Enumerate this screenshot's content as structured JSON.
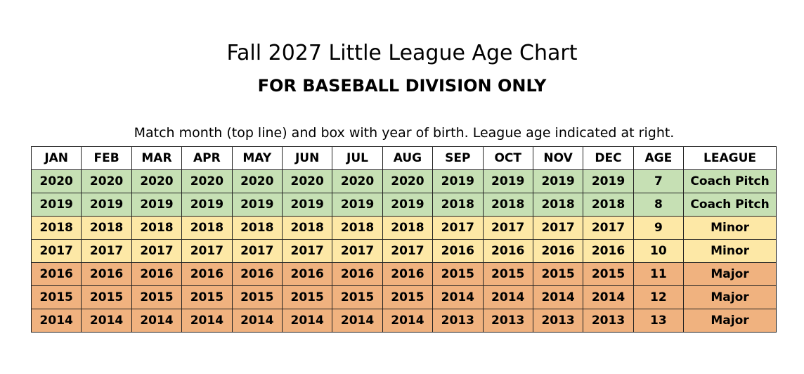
{
  "title": "Fall 2027 Little League Age Chart",
  "subtitle": "FOR BASEBALL DIVISION ONLY",
  "instruction": "Match month (top line) and box with year of birth.  League age indicated at right.",
  "table": {
    "header": [
      "JAN",
      "FEB",
      "MAR",
      "APR",
      "MAY",
      "JUN",
      "JUL",
      "AUG",
      "SEP",
      "OCT",
      "NOV",
      "DEC",
      "AGE",
      "LEAGUE"
    ],
    "rows": [
      [
        2020,
        2020,
        2020,
        2020,
        2020,
        2020,
        2020,
        2020,
        2019,
        2019,
        2019,
        2019,
        7,
        "Coach Pitch"
      ],
      [
        2019,
        2019,
        2019,
        2019,
        2019,
        2019,
        2019,
        2019,
        2018,
        2018,
        2018,
        2018,
        8,
        "Coach Pitch"
      ],
      [
        2018,
        2018,
        2018,
        2018,
        2018,
        2018,
        2018,
        2018,
        2017,
        2017,
        2017,
        2017,
        9,
        "Minor"
      ],
      [
        2017,
        2017,
        2017,
        2017,
        2017,
        2017,
        2017,
        2017,
        2016,
        2016,
        2016,
        2016,
        10,
        "Minor"
      ],
      [
        2016,
        2016,
        2016,
        2016,
        2016,
        2016,
        2016,
        2016,
        2015,
        2015,
        2015,
        2015,
        11,
        "Major"
      ],
      [
        2015,
        2015,
        2015,
        2015,
        2015,
        2015,
        2015,
        2015,
        2014,
        2014,
        2014,
        2014,
        12,
        "Major"
      ],
      [
        2014,
        2014,
        2014,
        2014,
        2014,
        2014,
        2014,
        2014,
        2013,
        2013,
        2013,
        2013,
        13,
        "Major"
      ]
    ]
  }
}
